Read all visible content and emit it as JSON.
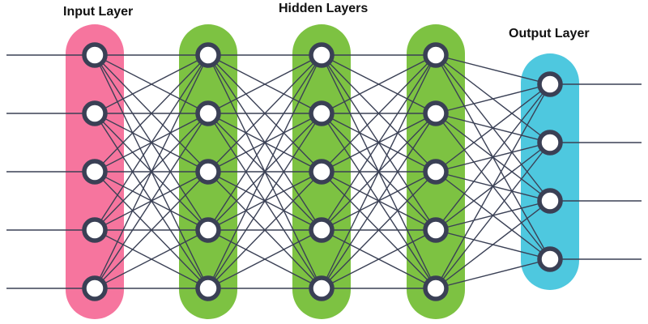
{
  "labels": {
    "input": "Input Layer",
    "hidden": "Hidden Layers",
    "output": "Output Layer"
  },
  "network": {
    "layers": [
      {
        "role": "input",
        "neurons": 5
      },
      {
        "role": "hidden",
        "neurons": 5
      },
      {
        "role": "hidden",
        "neurons": 5
      },
      {
        "role": "hidden",
        "neurons": 5
      },
      {
        "role": "output",
        "neurons": 4
      }
    ],
    "fully_connected": true,
    "input_lines": 5,
    "output_lines": 4
  },
  "colors": {
    "input": "#f6759e",
    "hidden": "#7dc242",
    "output": "#4ec8df",
    "node_ring": "#3a4055",
    "node_fill": "#ffffff",
    "edge": "#3a4055"
  }
}
